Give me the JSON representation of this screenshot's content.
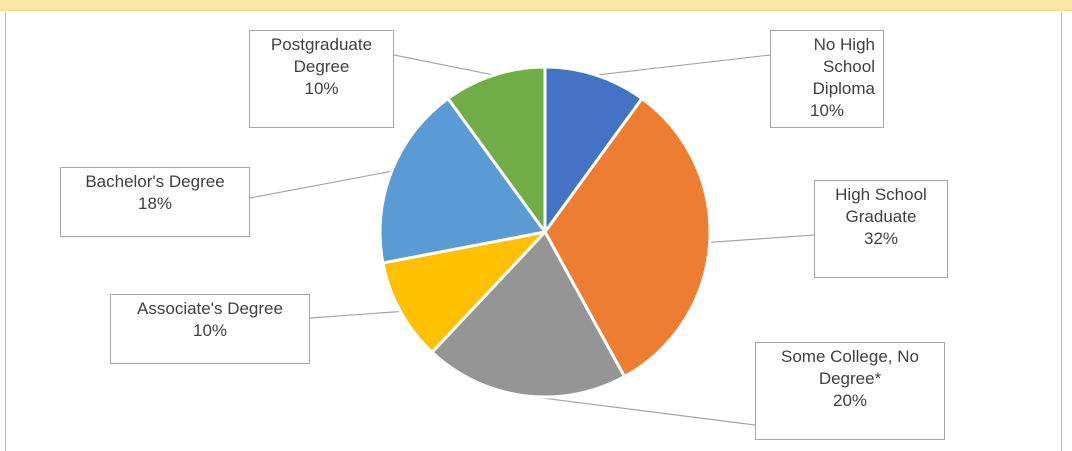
{
  "chart_data": {
    "type": "pie",
    "categories": [
      "No High School Diploma",
      "High School Graduate",
      "Some College, No Degree*",
      "Associate's Degree",
      "Bachelor's Degree",
      "Postgraduate Degree"
    ],
    "values": [
      10,
      32,
      20,
      10,
      18,
      10
    ],
    "colors": [
      "#4472c4",
      "#ed7d31",
      "#959595",
      "#ffc000",
      "#5b9bd5",
      "#70ad47"
    ],
    "data_labels": [
      {
        "name": "No High School Diploma",
        "lines": [
          "No High School",
          "Diploma"
        ],
        "percent": "10%"
      },
      {
        "name": "High School Graduate",
        "lines": [
          "High School",
          "Graduate"
        ],
        "percent": "32%"
      },
      {
        "name": "Some College, No Degree*",
        "lines": [
          "Some College, No",
          "Degree*"
        ],
        "percent": "20%"
      },
      {
        "name": "Associate's Degree",
        "lines": [
          "Associate's Degree"
        ],
        "percent": "10%"
      },
      {
        "name": "Bachelor's Degree",
        "lines": [
          "Bachelor's Degree"
        ],
        "percent": "18%"
      },
      {
        "name": "Postgraduate Degree",
        "lines": [
          "Postgraduate",
          "Degree"
        ],
        "percent": "10%"
      }
    ],
    "title": "",
    "legend": "none"
  }
}
